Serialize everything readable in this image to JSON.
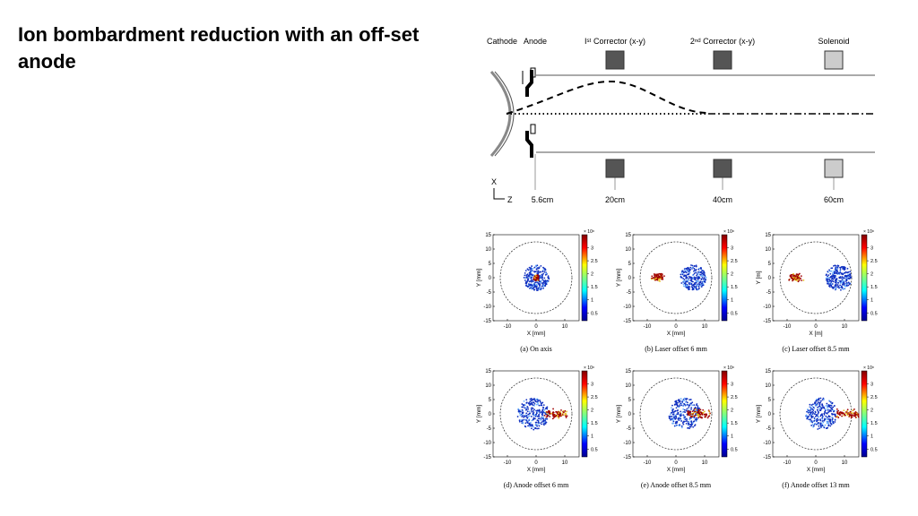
{
  "slide": {
    "title": "Ion bombardment reduction with an off-set anode"
  },
  "diagram": {
    "top_labels": [
      "Cathode",
      "Anode",
      "Iˢᵗ Corrector (x-y)",
      "2ⁿᵈ Corrector (x-y)",
      "Solenoid"
    ],
    "bottom_labels": [
      "5.6cm",
      "20cm",
      "40cm",
      "60cm"
    ],
    "axis_labels": [
      "X",
      "Z"
    ]
  },
  "plots": {
    "xticks": [
      -10,
      0,
      10
    ],
    "yticks": [
      15,
      10,
      5,
      0,
      -5,
      -10,
      -15
    ],
    "xlim": [
      -15,
      15
    ],
    "ylim": [
      -15,
      15
    ],
    "cbar_ticks": [
      3,
      2.5,
      2,
      1.5,
      1,
      0.5
    ],
    "cbar_lim": [
      0.2,
      3.5
    ],
    "cbar_exponent": "× 10⁸",
    "panels": [
      {
        "caption": "(a) On axis",
        "xlabel": "X [mm]",
        "ylabel": "Y [mm]"
      },
      {
        "caption": "(b) Laser offset 6 mm",
        "xlabel": "X [mm]",
        "ylabel": "Y [mm]"
      },
      {
        "caption": "(c) Laser offset 8.5 mm",
        "xlabel": "X [m]",
        "ylabel": "Y [m]"
      },
      {
        "caption": "(d) Anode offset 6 mm",
        "xlabel": "X [mm]",
        "ylabel": "Y [mm]"
      },
      {
        "caption": "(e) Anode offset 8.5 mm",
        "xlabel": "X [mm]",
        "ylabel": "Y [mm]"
      },
      {
        "caption": "(f) Anode offset 13 mm",
        "xlabel": "X [mm]",
        "ylabel": "Y [mm]"
      }
    ]
  }
}
